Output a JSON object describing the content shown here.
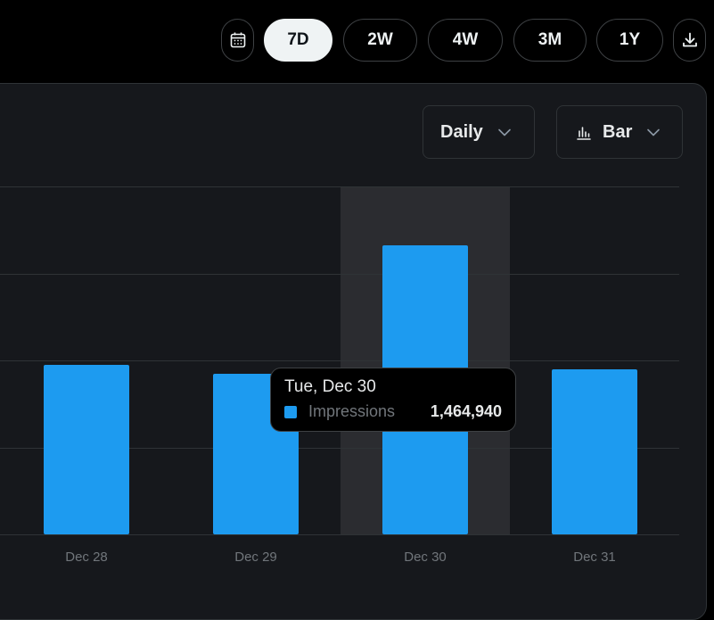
{
  "toolbar": {
    "calendar_icon": "calendar-icon",
    "download_icon": "download-icon",
    "ranges": [
      {
        "label": "7D",
        "active": true
      },
      {
        "label": "2W",
        "active": false
      },
      {
        "label": "4W",
        "active": false
      },
      {
        "label": "3M",
        "active": false
      },
      {
        "label": "1Y",
        "active": false
      }
    ]
  },
  "controls": {
    "interval": {
      "label": "Daily",
      "icon": "chevron-down-icon"
    },
    "chart_type": {
      "label": "Bar",
      "icon": "bar-chart-icon"
    }
  },
  "tooltip": {
    "date": "Tue, Dec 30",
    "series_label": "Impressions",
    "value": "1,464,940"
  },
  "colors": {
    "accent": "#1d9bf0",
    "panel": "#16181c",
    "background": "#000000",
    "hover_band": "#2b2c30"
  },
  "chart_data": {
    "type": "bar",
    "series": [
      {
        "name": "Impressions",
        "values": [
          1190000,
          1170000,
          1464940,
          1180000
        ]
      }
    ],
    "categories": [
      "Dec 28",
      "Dec 29",
      "Dec 30",
      "Dec 31"
    ],
    "highlighted_index": 2,
    "ylim": [
      800000,
      1600000
    ],
    "grid": true
  }
}
